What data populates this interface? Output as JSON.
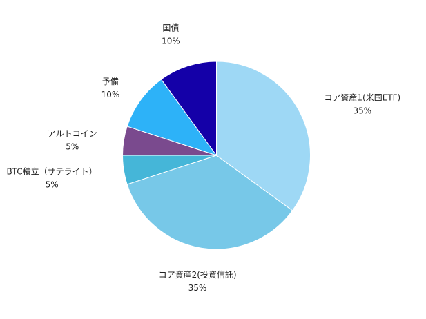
{
  "chart_data": {
    "type": "pie",
    "title": "",
    "start_angle_deg": 0,
    "direction": "clockwise",
    "slices": [
      {
        "label": "コア資産1(米国ETF)",
        "value": 35,
        "percent_label": "35%",
        "color": "#9ED8F5"
      },
      {
        "label": "コア資産2(投資信託)",
        "value": 35,
        "percent_label": "35%",
        "color": "#77C8E8"
      },
      {
        "label": "BTC積立（サテライト）",
        "value": 5,
        "percent_label": "5%",
        "color": "#45B6D8"
      },
      {
        "label": "アルトコイン",
        "value": 5,
        "percent_label": "5%",
        "color": "#7A4A8E"
      },
      {
        "label": "予備",
        "value": 10,
        "percent_label": "10%",
        "color": "#2DB2F8"
      },
      {
        "label": "国債",
        "value": 10,
        "percent_label": "10%",
        "color": "#1400A8"
      }
    ]
  }
}
